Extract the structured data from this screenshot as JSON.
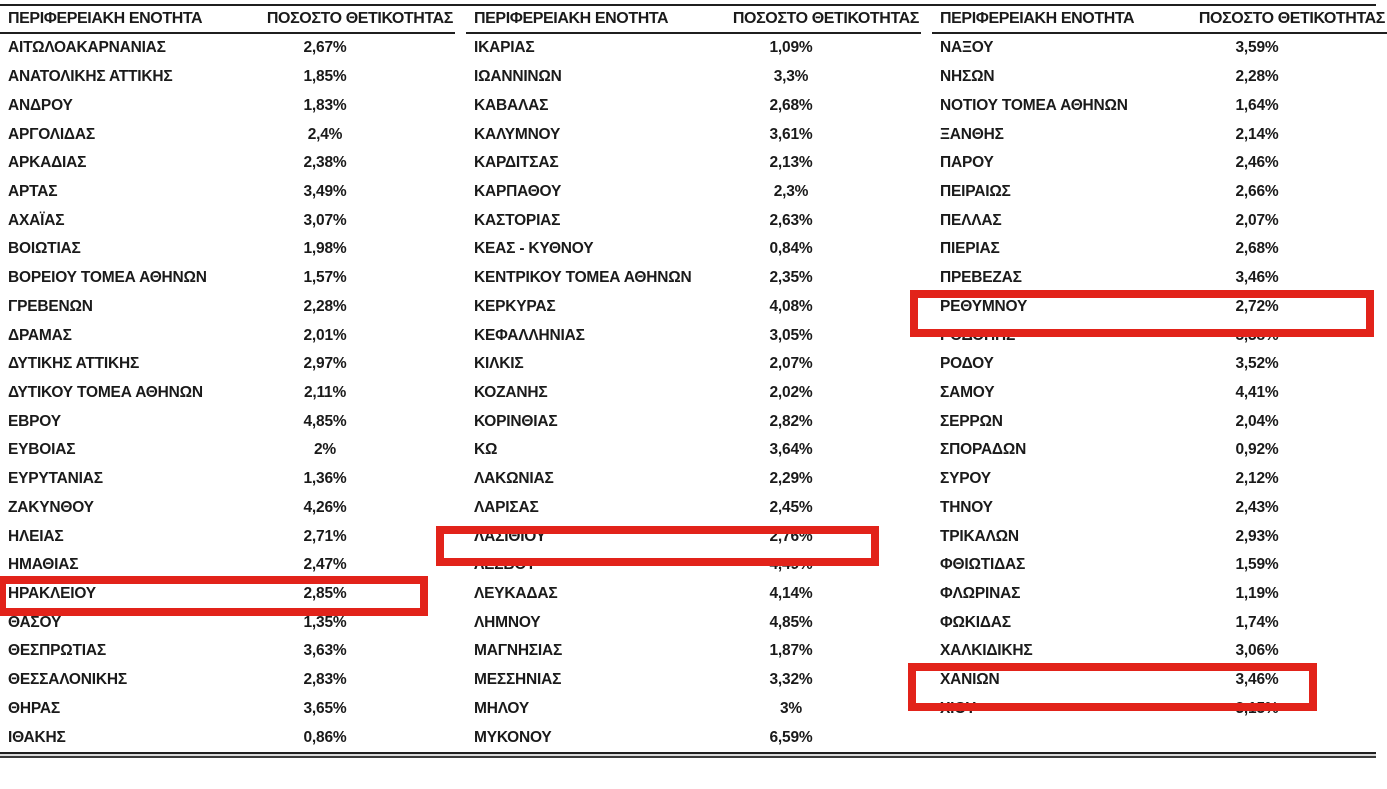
{
  "document": {
    "description": "Positivity percentage table by Greek regional unit with four rows highlighted in red"
  },
  "columns": {
    "region": "ΠΕΡΙΦΕΡΕΙΑΚΗ ΕΝΟΤΗΤΑ",
    "positivity": "ΠΟΣΟΣΤΟ ΘΕΤΙΚΟΤΗΤΑΣ"
  },
  "highlight_color": "#e2231a",
  "tables": [
    {
      "rows": [
        {
          "region": "ΑΙΤΩΛΟΑΚΑΡΝΑΝΙΑΣ",
          "positivity": "2,67%"
        },
        {
          "region": "ΑΝΑΤΟΛΙΚΗΣ ΑΤΤΙΚΗΣ",
          "positivity": "1,85%"
        },
        {
          "region": "ΑΝΔΡΟΥ",
          "positivity": "1,83%"
        },
        {
          "region": "ΑΡΓΟΛΙΔΑΣ",
          "positivity": "2,4%"
        },
        {
          "region": "ΑΡΚΑΔΙΑΣ",
          "positivity": "2,38%"
        },
        {
          "region": "ΑΡΤΑΣ",
          "positivity": "3,49%"
        },
        {
          "region": "ΑΧΑΪΑΣ",
          "positivity": "3,07%"
        },
        {
          "region": "ΒΟΙΩΤΙΑΣ",
          "positivity": "1,98%"
        },
        {
          "region": "ΒΟΡΕΙΟΥ ΤΟΜΕΑ ΑΘΗΝΩΝ",
          "positivity": "1,57%"
        },
        {
          "region": "ΓΡΕΒΕΝΩΝ",
          "positivity": "2,28%"
        },
        {
          "region": "ΔΡΑΜΑΣ",
          "positivity": "2,01%"
        },
        {
          "region": "ΔΥΤΙΚΗΣ ΑΤΤΙΚΗΣ",
          "positivity": "2,97%"
        },
        {
          "region": "ΔΥΤΙΚΟΥ ΤΟΜΕΑ ΑΘΗΝΩΝ",
          "positivity": "2,11%"
        },
        {
          "region": "ΕΒΡΟΥ",
          "positivity": "4,85%"
        },
        {
          "region": "ΕΥΒΟΙΑΣ",
          "positivity": "2%"
        },
        {
          "region": "ΕΥΡΥΤΑΝΙΑΣ",
          "positivity": "1,36%"
        },
        {
          "region": "ΖΑΚΥΝΘΟΥ",
          "positivity": "4,26%"
        },
        {
          "region": "ΗΛΕΙΑΣ",
          "positivity": "2,71%"
        },
        {
          "region": "ΗΜΑΘΙΑΣ",
          "positivity": "2,47%"
        },
        {
          "region": "ΗΡΑΚΛΕΙΟΥ",
          "positivity": "2,85%",
          "highlighted": true
        },
        {
          "region": "ΘΑΣΟΥ",
          "positivity": "1,35%"
        },
        {
          "region": "ΘΕΣΠΡΩΤΙΑΣ",
          "positivity": "3,63%"
        },
        {
          "region": "ΘΕΣΣΑΛΟΝΙΚΗΣ",
          "positivity": "2,83%"
        },
        {
          "region": "ΘΗΡΑΣ",
          "positivity": "3,65%"
        },
        {
          "region": "ΙΘΑΚΗΣ",
          "positivity": "0,86%"
        }
      ]
    },
    {
      "rows": [
        {
          "region": "ΙΚΑΡΙΑΣ",
          "positivity": "1,09%"
        },
        {
          "region": "ΙΩΑΝΝΙΝΩΝ",
          "positivity": "3,3%"
        },
        {
          "region": "ΚΑΒΑΛΑΣ",
          "positivity": "2,68%"
        },
        {
          "region": "ΚΑΛΥΜΝΟΥ",
          "positivity": "3,61%"
        },
        {
          "region": "ΚΑΡΔΙΤΣΑΣ",
          "positivity": "2,13%"
        },
        {
          "region": "ΚΑΡΠΑΘΟΥ",
          "positivity": "2,3%"
        },
        {
          "region": "ΚΑΣΤΟΡΙΑΣ",
          "positivity": "2,63%"
        },
        {
          "region": "ΚΕΑΣ - ΚΥΘΝΟΥ",
          "positivity": "0,84%"
        },
        {
          "region": "ΚΕΝΤΡΙΚΟΥ ΤΟΜΕΑ ΑΘΗΝΩΝ",
          "positivity": "2,35%"
        },
        {
          "region": "ΚΕΡΚΥΡΑΣ",
          "positivity": "4,08%"
        },
        {
          "region": "ΚΕΦΑΛΛΗΝΙΑΣ",
          "positivity": "3,05%"
        },
        {
          "region": "ΚΙΛΚΙΣ",
          "positivity": "2,07%"
        },
        {
          "region": "ΚΟΖΑΝΗΣ",
          "positivity": "2,02%"
        },
        {
          "region": "ΚΟΡΙΝΘΙΑΣ",
          "positivity": "2,82%"
        },
        {
          "region": "ΚΩ",
          "positivity": "3,64%"
        },
        {
          "region": "ΛΑΚΩΝΙΑΣ",
          "positivity": "2,29%"
        },
        {
          "region": "ΛΑΡΙΣΑΣ",
          "positivity": "2,45%"
        },
        {
          "region": "ΛΑΣΙΘΙΟΥ",
          "positivity": "2,76%",
          "highlighted": true
        },
        {
          "region": "ΛΕΣΒΟΥ",
          "positivity": "4,49%"
        },
        {
          "region": "ΛΕΥΚΑΔΑΣ",
          "positivity": "4,14%"
        },
        {
          "region": "ΛΗΜΝΟΥ",
          "positivity": "4,85%"
        },
        {
          "region": "ΜΑΓΝΗΣΙΑΣ",
          "positivity": "1,87%"
        },
        {
          "region": "ΜΕΣΣΗΝΙΑΣ",
          "positivity": "3,32%"
        },
        {
          "region": "ΜΗΛΟΥ",
          "positivity": "3%"
        },
        {
          "region": "ΜΥΚΟΝΟΥ",
          "positivity": "6,59%"
        }
      ]
    },
    {
      "rows": [
        {
          "region": "ΝΑΞΟΥ",
          "positivity": "3,59%"
        },
        {
          "region": "ΝΗΣΩΝ",
          "positivity": "2,28%"
        },
        {
          "region": "ΝΟΤΙΟΥ ΤΟΜΕΑ ΑΘΗΝΩΝ",
          "positivity": "1,64%"
        },
        {
          "region": "ΞΑΝΘΗΣ",
          "positivity": "2,14%"
        },
        {
          "region": "ΠΑΡΟΥ",
          "positivity": "2,46%"
        },
        {
          "region": "ΠΕΙΡΑΙΩΣ",
          "positivity": "2,66%"
        },
        {
          "region": "ΠΕΛΛΑΣ",
          "positivity": "2,07%"
        },
        {
          "region": "ΠΙΕΡΙΑΣ",
          "positivity": "2,68%"
        },
        {
          "region": "ΠΡΕΒΕΖΑΣ",
          "positivity": "3,46%"
        },
        {
          "region": "ΡΕΘΥΜΝΟΥ",
          "positivity": "2,72%",
          "highlighted": true
        },
        {
          "region": "ΡΟΔΟΠΗΣ",
          "positivity": "5,38%"
        },
        {
          "region": "ΡΟΔΟΥ",
          "positivity": "3,52%"
        },
        {
          "region": "ΣΑΜΟΥ",
          "positivity": "4,41%"
        },
        {
          "region": "ΣΕΡΡΩΝ",
          "positivity": "2,04%"
        },
        {
          "region": "ΣΠΟΡΑΔΩΝ",
          "positivity": "0,92%"
        },
        {
          "region": "ΣΥΡΟΥ",
          "positivity": "2,12%"
        },
        {
          "region": "ΤΗΝΟΥ",
          "positivity": "2,43%"
        },
        {
          "region": "ΤΡΙΚΑΛΩΝ",
          "positivity": "2,93%"
        },
        {
          "region": "ΦΘΙΩΤΙΔΑΣ",
          "positivity": "1,59%"
        },
        {
          "region": "ΦΛΩΡΙΝΑΣ",
          "positivity": "1,19%"
        },
        {
          "region": "ΦΩΚΙΔΑΣ",
          "positivity": "1,74%"
        },
        {
          "region": "ΧΑΛΚΙΔΙΚΗΣ",
          "positivity": "3,06%"
        },
        {
          "region": "ΧΑΝΙΩΝ",
          "positivity": "3,46%",
          "highlighted": true
        },
        {
          "region": "ΧΙΟΥ",
          "positivity": "3,15%"
        }
      ]
    }
  ]
}
